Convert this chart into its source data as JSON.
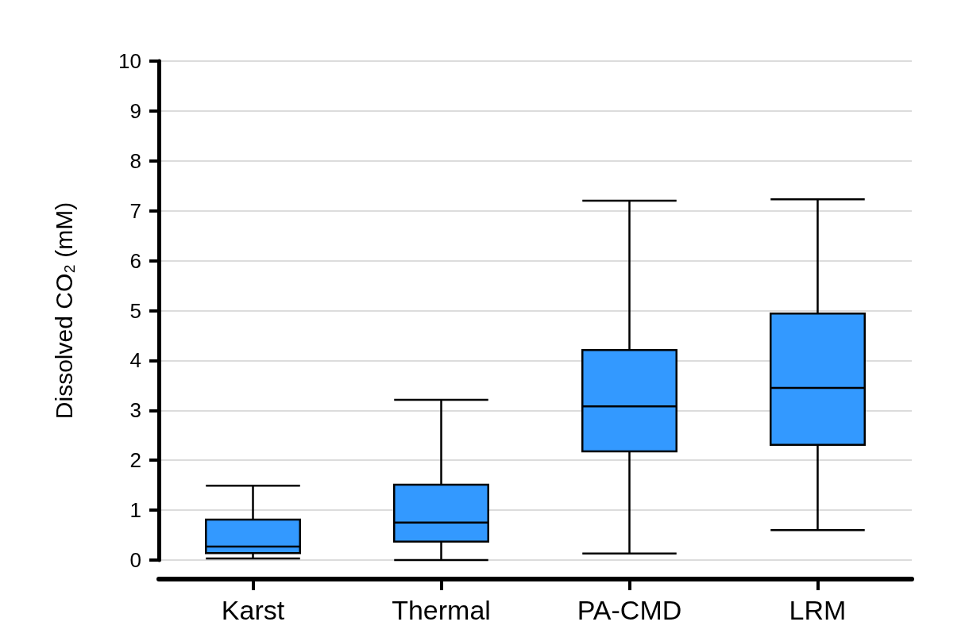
{
  "chart_data": {
    "type": "box",
    "ylabel": "Dissolved CO₂ (mM)",
    "categories": [
      "Karst",
      "Thermal",
      "PA-CMD",
      "LRM"
    ],
    "boxes": [
      {
        "low": 0.03,
        "q1": 0.14,
        "median": 0.27,
        "q3": 0.81,
        "high": 1.49
      },
      {
        "low": 0,
        "q1": 0.37,
        "median": 0.75,
        "q3": 1.51,
        "high": 3.21
      },
      {
        "low": 0.13,
        "q1": 2.18,
        "median": 3.08,
        "q3": 4.21,
        "high": 7.2
      },
      {
        "low": 0.6,
        "q1": 2.31,
        "median": 3.45,
        "q3": 4.94,
        "high": 7.23
      }
    ],
    "color": "#3399ff",
    "ylim": [
      0,
      10
    ],
    "yticks": [
      0,
      1,
      2,
      3,
      4,
      5,
      6,
      7,
      8,
      9,
      10
    ],
    "grid": "y"
  }
}
